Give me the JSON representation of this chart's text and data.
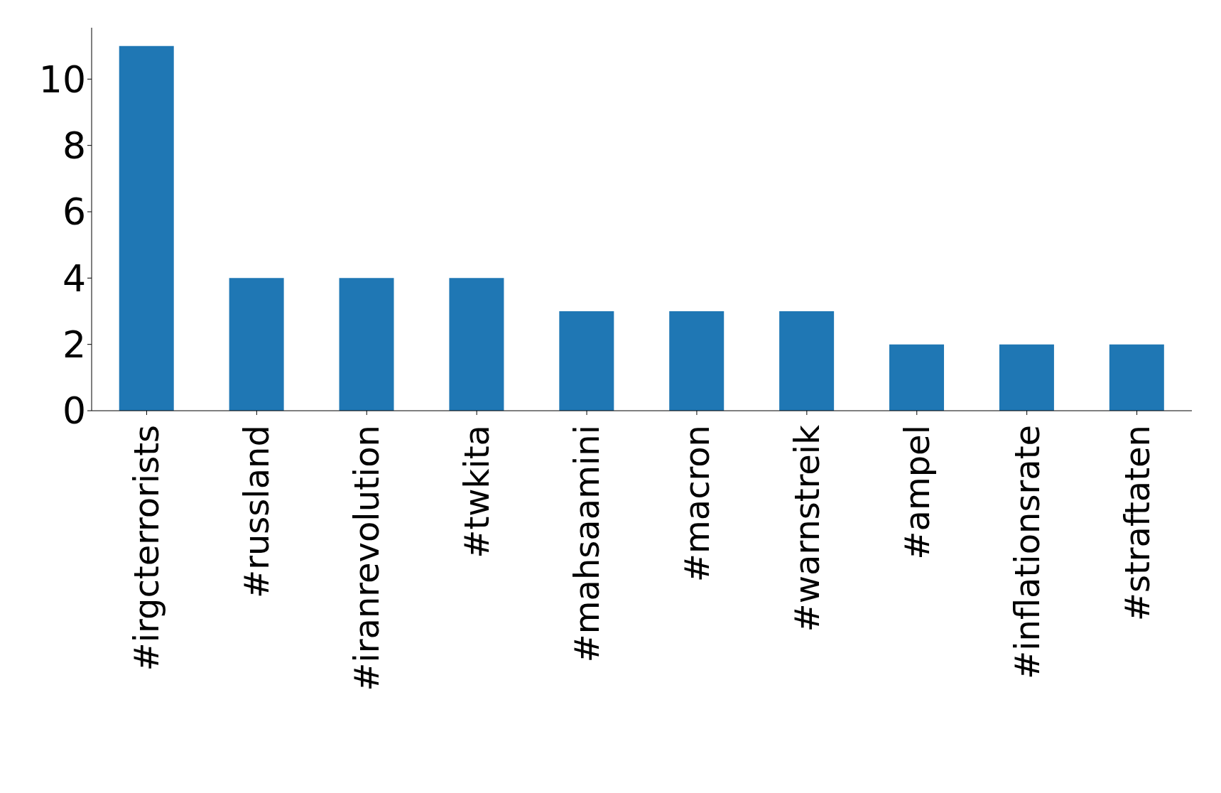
{
  "chart_data": {
    "type": "bar",
    "categories": [
      "#irgcterrorists",
      "#russland",
      "#iranrevolution",
      "#twkita",
      "#mahsaamini",
      "#macron",
      "#warnstreik",
      "#ampel",
      "#inflationsrate",
      "#straftaten"
    ],
    "values": [
      11,
      4,
      4,
      4,
      3,
      3,
      3,
      2,
      2,
      2
    ],
    "color": "#1f77b4",
    "ylim": [
      0,
      11.55
    ],
    "yticks": [
      0,
      2,
      4,
      6,
      8,
      10
    ],
    "grid": false,
    "legend": false
  }
}
